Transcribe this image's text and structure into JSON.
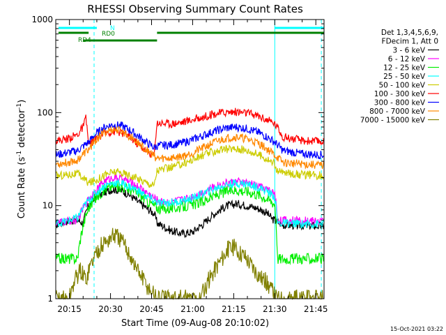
{
  "chart_data": {
    "type": "line",
    "title": "RHESSI Observing Summary Count Rates",
    "xlabel": "Start Time (09-Aug-08 20:10:02)",
    "ylabel_main": "Count Rate (s",
    "ylabel_exp1": "-1",
    "ylabel_mid": " detector",
    "ylabel_exp2": "-1",
    "ylabel_end": ")",
    "y_scale": "log",
    "ylim": [
      1,
      1000
    ],
    "xlim_minutes": [
      "20:10",
      "21:48"
    ],
    "x_ticks": [
      "20:15",
      "20:30",
      "20:45",
      "21:00",
      "21:15",
      "21:30",
      "21:45"
    ],
    "y_ticks": [
      {
        "value": 1,
        "label": "1"
      },
      {
        "value": 10,
        "label": "10"
      },
      {
        "value": 100,
        "label": "100"
      },
      {
        "value": 1000,
        "label": "1000"
      }
    ],
    "legend_header": [
      "Det 1,3,4,5,6,9,",
      "FDecim 1, Att 0"
    ],
    "legend_placement": "right",
    "series": [
      {
        "name": "3 - 6 keV",
        "color": "#000000",
        "points": [
          [
            "20:10",
            6.2
          ],
          [
            "20:14",
            6.8
          ],
          [
            "20:18",
            7.0
          ],
          [
            "20:20",
            6.5
          ],
          [
            "20:22",
            10
          ],
          [
            "20:25",
            12.5
          ],
          [
            "20:28",
            14
          ],
          [
            "20:31",
            15
          ],
          [
            "20:34",
            14.5
          ],
          [
            "20:37",
            13
          ],
          [
            "20:40",
            11
          ],
          [
            "20:43",
            9.5
          ],
          [
            "20:46",
            8.2
          ],
          [
            "20:47",
            6.5
          ],
          [
            "20:52",
            5.4
          ],
          [
            "20:56",
            5.0
          ],
          [
            "21:00",
            5.2
          ],
          [
            "21:04",
            6.4
          ],
          [
            "21:08",
            8.2
          ],
          [
            "21:12",
            9.8
          ],
          [
            "21:16",
            10.5
          ],
          [
            "21:20",
            10
          ],
          [
            "21:24",
            9.3
          ],
          [
            "21:27",
            8.4
          ],
          [
            "21:29",
            7.2
          ],
          [
            "21:33",
            6.2
          ],
          [
            "21:40",
            6.1
          ],
          [
            "21:48",
            6.0
          ]
        ]
      },
      {
        "name": "6 - 12 keV",
        "color": "#ff00ff",
        "points": [
          [
            "20:10",
            6.5
          ],
          [
            "20:18",
            7.0
          ],
          [
            "20:21",
            10.5
          ],
          [
            "20:24",
            14
          ],
          [
            "20:28",
            18.5
          ],
          [
            "20:31",
            20
          ],
          [
            "20:34",
            19.5
          ],
          [
            "20:37",
            18
          ],
          [
            "20:40",
            16
          ],
          [
            "20:43",
            14
          ],
          [
            "20:46",
            12
          ],
          [
            "20:48",
            11
          ],
          [
            "20:52",
            11
          ],
          [
            "20:56",
            11.5
          ],
          [
            "21:00",
            12.5
          ],
          [
            "21:04",
            14
          ],
          [
            "21:08",
            16
          ],
          [
            "21:12",
            17.5
          ],
          [
            "21:16",
            18
          ],
          [
            "21:20",
            17.5
          ],
          [
            "21:24",
            16.2
          ],
          [
            "21:27",
            15
          ],
          [
            "21:29",
            14
          ],
          [
            "21:30",
            13.5
          ],
          [
            "21:31",
            7.0
          ],
          [
            "21:48",
            6.8
          ]
        ]
      },
      {
        "name": "12 - 25 keV",
        "color": "#00ee00",
        "points": [
          [
            "20:10",
            2.7
          ],
          [
            "20:18",
            2.7
          ],
          [
            "20:22",
            9.5
          ],
          [
            "20:25",
            12.5
          ],
          [
            "20:28",
            15
          ],
          [
            "20:31",
            16.3
          ],
          [
            "20:34",
            16
          ],
          [
            "20:37",
            15
          ],
          [
            "20:40",
            13.5
          ],
          [
            "20:43",
            11.5
          ],
          [
            "20:46",
            10
          ],
          [
            "20:48",
            9.2
          ],
          [
            "20:52",
            9.4
          ],
          [
            "20:56",
            9.7
          ],
          [
            "21:00",
            10.2
          ],
          [
            "21:04",
            11.2
          ],
          [
            "21:08",
            12.8
          ],
          [
            "21:12",
            14.2
          ],
          [
            "21:16",
            14.8
          ],
          [
            "21:20",
            14.3
          ],
          [
            "21:24",
            13.2
          ],
          [
            "21:27",
            12
          ],
          [
            "21:30",
            10.5
          ],
          [
            "21:31",
            2.7
          ],
          [
            "21:48",
            2.7
          ]
        ]
      },
      {
        "name": "25 - 50 keV",
        "color": "#00ffff",
        "points": [
          [
            "20:10",
            6.4
          ],
          [
            "20:14",
            6.8
          ],
          [
            "20:18",
            7.4
          ],
          [
            "20:21",
            10.5
          ],
          [
            "20:24",
            13
          ],
          [
            "20:28",
            16.5
          ],
          [
            "20:31",
            17.6
          ],
          [
            "20:34",
            17.3
          ],
          [
            "20:37",
            16
          ],
          [
            "20:40",
            14.5
          ],
          [
            "20:43",
            12.6
          ],
          [
            "20:46",
            11.2
          ],
          [
            "20:48",
            10.6
          ],
          [
            "20:52",
            10.8
          ],
          [
            "20:56",
            11.2
          ],
          [
            "21:00",
            12
          ],
          [
            "21:04",
            13.5
          ],
          [
            "21:08",
            15.2
          ],
          [
            "21:12",
            16.8
          ],
          [
            "21:16",
            17.4
          ],
          [
            "21:20",
            17
          ],
          [
            "21:24",
            15.8
          ],
          [
            "21:27",
            14.3
          ],
          [
            "21:30",
            12.5
          ],
          [
            "21:31",
            6.5
          ],
          [
            "21:48",
            6.3
          ]
        ]
      },
      {
        "name": "50 - 100 keV",
        "color": "#cccc00",
        "points": [
          [
            "20:10",
            21
          ],
          [
            "20:18",
            22
          ],
          [
            "20:22",
            17.5
          ],
          [
            "20:25",
            19
          ],
          [
            "20:28",
            21.5
          ],
          [
            "20:31",
            23
          ],
          [
            "20:34",
            22.5
          ],
          [
            "20:37",
            21.2
          ],
          [
            "20:40",
            19.5
          ],
          [
            "20:43",
            17.8
          ],
          [
            "20:46",
            16.5
          ],
          [
            "20:47",
            24
          ],
          [
            "20:52",
            25.5
          ],
          [
            "20:56",
            28
          ],
          [
            "21:00",
            31
          ],
          [
            "21:04",
            35
          ],
          [
            "21:08",
            38.5
          ],
          [
            "21:12",
            40.5
          ],
          [
            "21:16",
            41
          ],
          [
            "21:20",
            39
          ],
          [
            "21:24",
            35.5
          ],
          [
            "21:27",
            32
          ],
          [
            "21:30",
            28
          ],
          [
            "21:31",
            23
          ],
          [
            "21:40",
            21.5
          ],
          [
            "21:48",
            21
          ]
        ]
      },
      {
        "name": "100 - 300 keV",
        "color": "#ff0000",
        "points": [
          [
            "20:10",
            50
          ],
          [
            "20:14",
            52
          ],
          [
            "20:18",
            58
          ],
          [
            "20:20",
            70
          ],
          [
            "20:21",
            86
          ],
          [
            "20:22",
            45
          ],
          [
            "20:25",
            53
          ],
          [
            "20:28",
            60
          ],
          [
            "20:31",
            63
          ],
          [
            "20:34",
            61
          ],
          [
            "20:37",
            55
          ],
          [
            "20:40",
            46
          ],
          [
            "20:43",
            39
          ],
          [
            "20:46",
            34
          ],
          [
            "20:47",
            78
          ],
          [
            "20:52",
            76
          ],
          [
            "20:56",
            79
          ],
          [
            "21:00",
            84
          ],
          [
            "21:04",
            90
          ],
          [
            "21:08",
            97
          ],
          [
            "21:12",
            101
          ],
          [
            "21:16",
            102
          ],
          [
            "21:20",
            99
          ],
          [
            "21:24",
            92
          ],
          [
            "21:27",
            84
          ],
          [
            "21:30",
            76
          ],
          [
            "21:33",
            55
          ],
          [
            "21:40",
            50
          ],
          [
            "21:48",
            49
          ]
        ]
      },
      {
        "name": "300 - 800 keV",
        "color": "#0000ff",
        "points": [
          [
            "20:10",
            35
          ],
          [
            "20:14",
            37
          ],
          [
            "20:18",
            39
          ],
          [
            "20:22",
            48
          ],
          [
            "20:25",
            60
          ],
          [
            "20:28",
            70
          ],
          [
            "20:31",
            74
          ],
          [
            "20:34",
            72
          ],
          [
            "20:37",
            65
          ],
          [
            "20:40",
            56
          ],
          [
            "20:43",
            48
          ],
          [
            "20:46",
            42
          ],
          [
            "20:47",
            44
          ],
          [
            "20:52",
            45
          ],
          [
            "20:56",
            47
          ],
          [
            "21:00",
            51
          ],
          [
            "21:04",
            57
          ],
          [
            "21:08",
            63
          ],
          [
            "21:12",
            68
          ],
          [
            "21:16",
            70
          ],
          [
            "21:20",
            67
          ],
          [
            "21:24",
            61
          ],
          [
            "21:27",
            55
          ],
          [
            "21:30",
            48
          ],
          [
            "21:33",
            39
          ],
          [
            "21:40",
            36
          ],
          [
            "21:48",
            35
          ]
        ]
      },
      {
        "name": "800 - 7000 keV",
        "color": "#ff8800",
        "points": [
          [
            "20:10",
            28
          ],
          [
            "20:14",
            29
          ],
          [
            "20:18",
            31
          ],
          [
            "20:22",
            40
          ],
          [
            "20:25",
            52
          ],
          [
            "20:28",
            62
          ],
          [
            "20:31",
            66
          ],
          [
            "20:34",
            63
          ],
          [
            "20:37",
            56
          ],
          [
            "20:40",
            47
          ],
          [
            "20:43",
            40
          ],
          [
            "20:46",
            34
          ],
          [
            "20:47",
            32
          ],
          [
            "20:52",
            32.5
          ],
          [
            "20:56",
            34
          ],
          [
            "21:00",
            37
          ],
          [
            "21:04",
            42
          ],
          [
            "21:08",
            48
          ],
          [
            "21:12",
            53
          ],
          [
            "21:16",
            55
          ],
          [
            "21:20",
            52
          ],
          [
            "21:24",
            47
          ],
          [
            "21:27",
            41
          ],
          [
            "21:30",
            35
          ],
          [
            "21:33",
            29
          ],
          [
            "21:40",
            28
          ],
          [
            "21:48",
            27
          ]
        ]
      },
      {
        "name": "7000 - 15000 keV",
        "color": "#808000",
        "points": [
          [
            "20:10",
            1.0
          ],
          [
            "20:15",
            1.0
          ],
          [
            "20:17",
            1.6
          ],
          [
            "20:19",
            2.0
          ],
          [
            "20:21",
            1.6
          ],
          [
            "20:23",
            2.4
          ],
          [
            "20:25",
            3.2
          ],
          [
            "20:27",
            3.8
          ],
          [
            "20:29",
            4.2
          ],
          [
            "20:31",
            4.8
          ],
          [
            "20:33",
            4.5
          ],
          [
            "20:35",
            3.8
          ],
          [
            "20:37",
            3.0
          ],
          [
            "20:39",
            2.2
          ],
          [
            "20:41",
            1.8
          ],
          [
            "20:43",
            1.4
          ],
          [
            "20:45",
            1.2
          ],
          [
            "20:47",
            1.0
          ],
          [
            "20:55",
            1.0
          ],
          [
            "21:03",
            1.0
          ],
          [
            "21:05",
            1.4
          ],
          [
            "21:07",
            1.8
          ],
          [
            "21:09",
            2.3
          ],
          [
            "21:11",
            2.8
          ],
          [
            "21:13",
            3.4
          ],
          [
            "21:15",
            3.6
          ],
          [
            "21:17",
            3.2
          ],
          [
            "21:19",
            2.9
          ],
          [
            "21:21",
            2.4
          ],
          [
            "21:23",
            2.0
          ],
          [
            "21:25",
            1.7
          ],
          [
            "21:27",
            1.5
          ],
          [
            "21:29",
            1.2
          ],
          [
            "21:31",
            1.0
          ],
          [
            "21:48",
            1.0
          ]
        ]
      }
    ],
    "segments": [
      {
        "label": "N",
        "color": "#00ffff",
        "level": "top",
        "ranges": [
          [
            "20:11",
            "20:25"
          ],
          [
            "21:30",
            "21:48"
          ]
        ]
      },
      {
        "label": "RD0",
        "color": "#008000",
        "level": "upper",
        "ranges": [
          [
            "20:11",
            "20:22"
          ],
          [
            "20:47",
            "21:48"
          ]
        ]
      },
      {
        "label": "RD4",
        "color": "#008000",
        "level": "lower",
        "ranges": [
          [
            "20:20",
            "20:47"
          ]
        ]
      }
    ],
    "vlines": [
      {
        "time": "20:10",
        "style": "solid",
        "color": "#00ffff"
      },
      {
        "time": "20:24",
        "style": "dashed",
        "color": "#00ffff"
      },
      {
        "time": "21:30",
        "style": "solid",
        "color": "#00ffff"
      },
      {
        "time": "21:47",
        "style": "dashed",
        "color": "#00ffff"
      }
    ]
  },
  "footer": {
    "timestamp": "15-Oct-2021 03:22"
  }
}
